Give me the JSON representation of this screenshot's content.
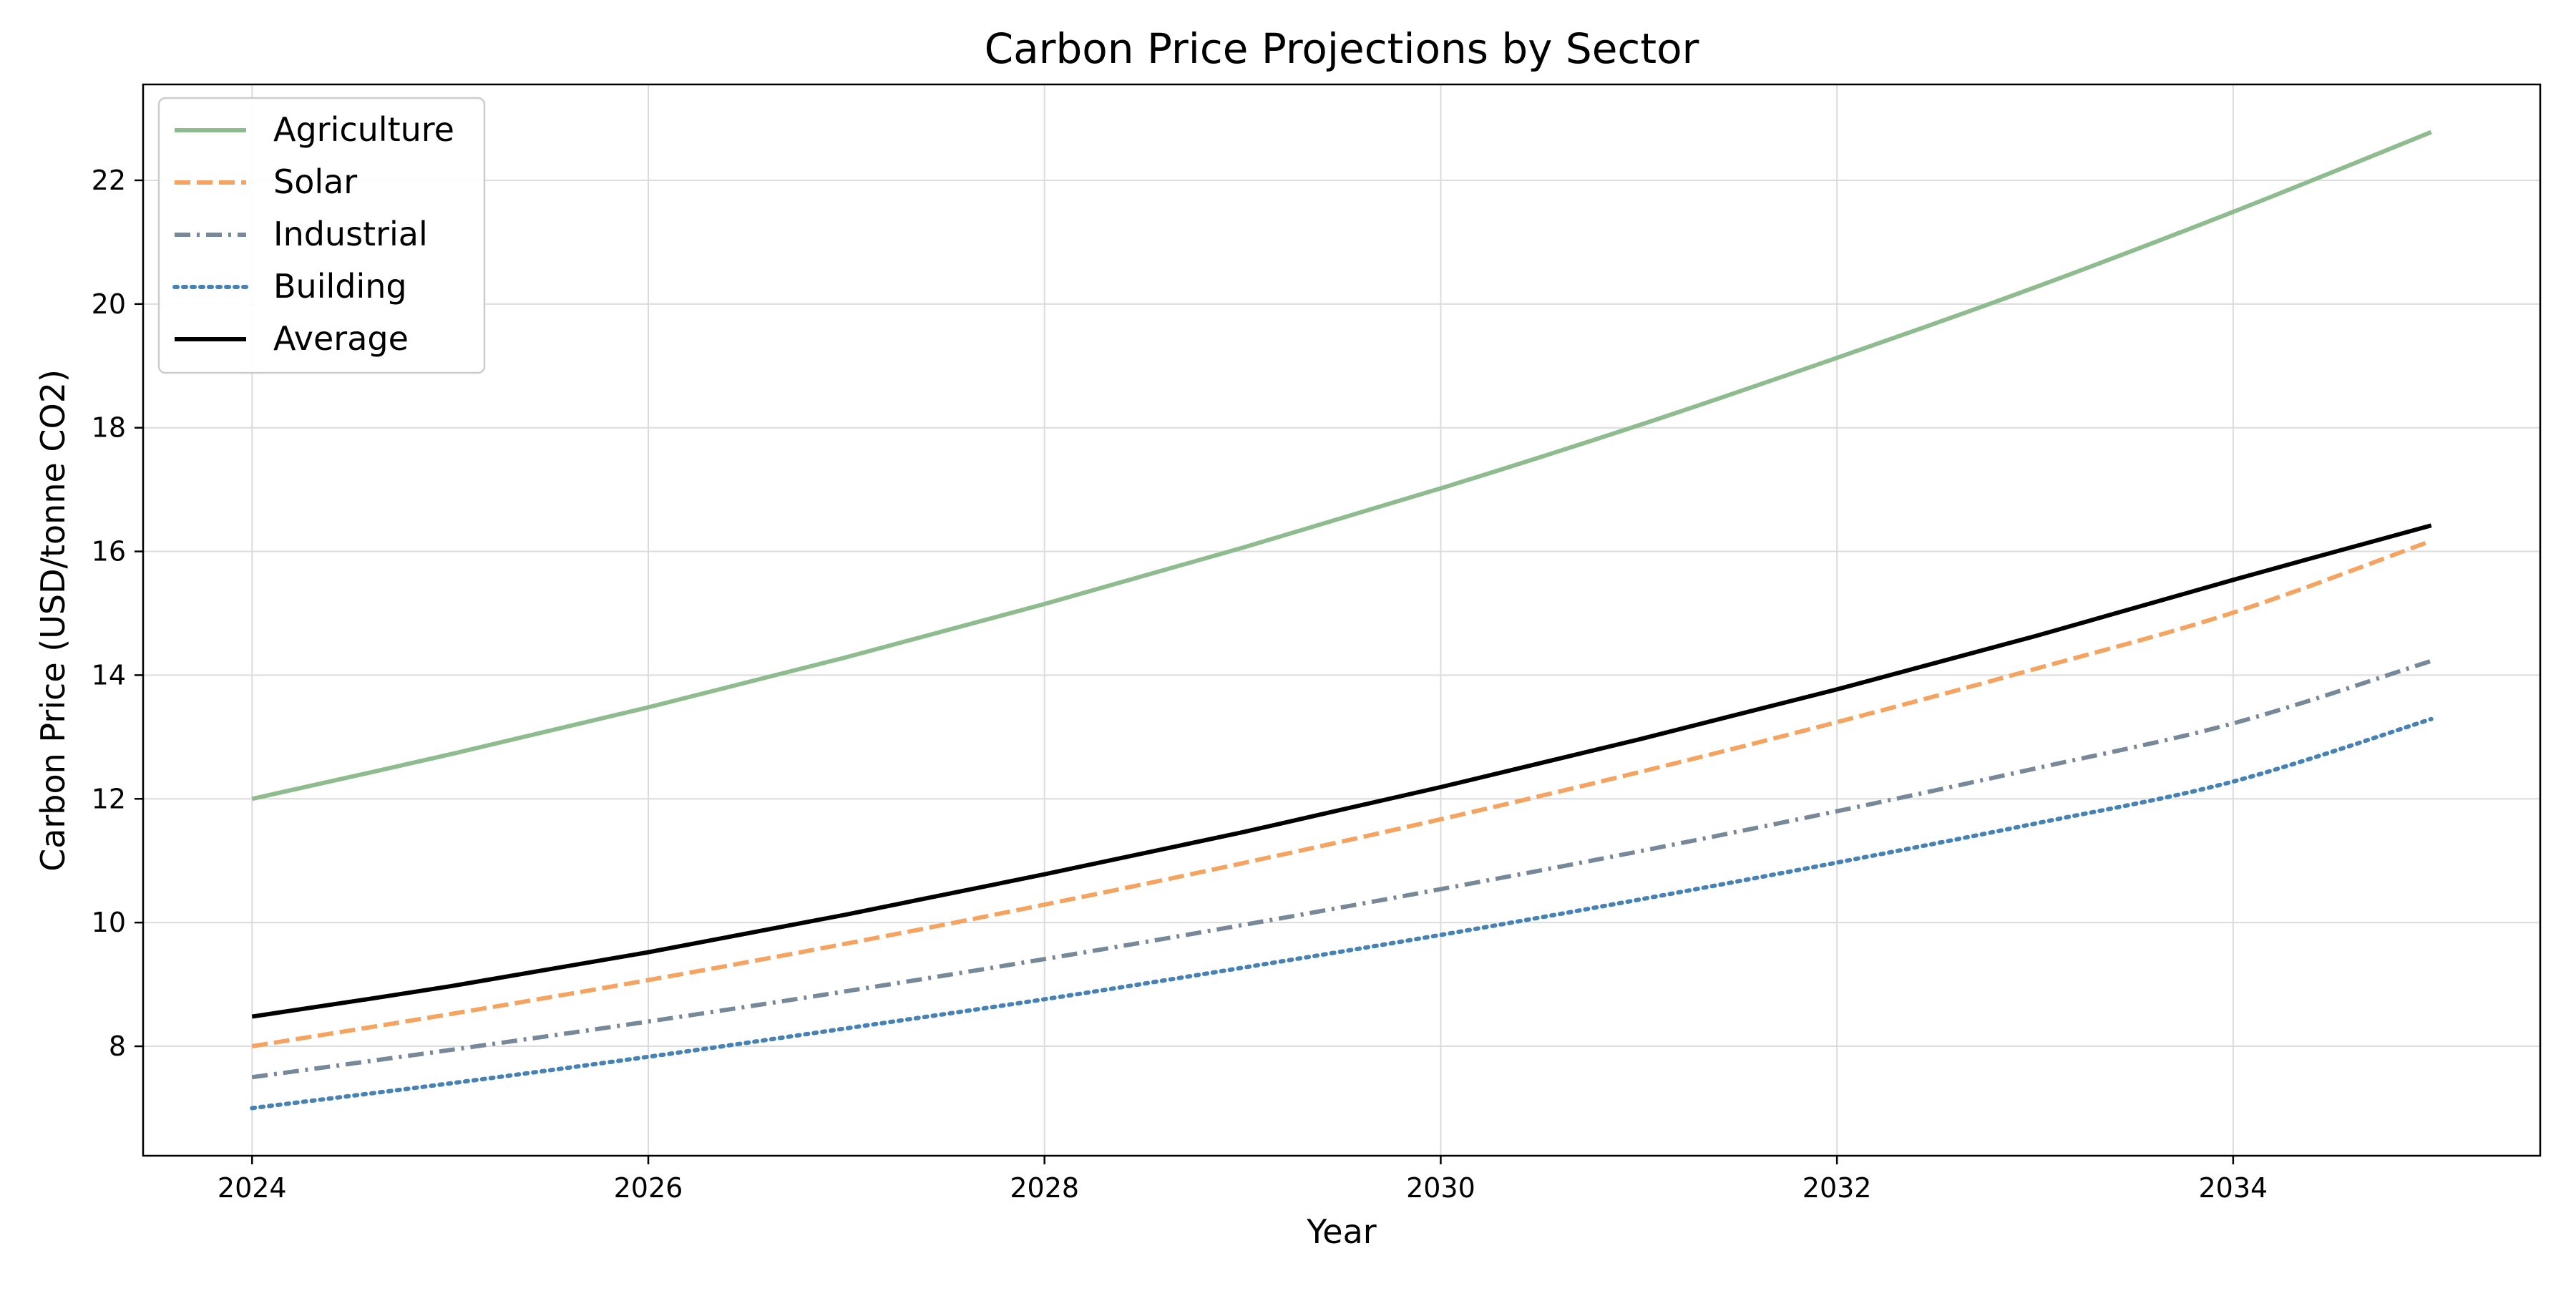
{
  "chart_data": {
    "type": "line",
    "title": "Carbon Price Projections by Sector",
    "xlabel": "Year",
    "ylabel": "Carbon Price (USD/tonne CO2)",
    "xlim": [
      2023.45,
      2035.55
    ],
    "ylim": [
      6.23,
      23.55
    ],
    "x_ticks": [
      2024,
      2026,
      2028,
      2030,
      2032,
      2034
    ],
    "y_ticks": [
      8,
      10,
      12,
      14,
      16,
      18,
      20,
      22
    ],
    "grid": true,
    "legend_position": "top-left",
    "x": [
      2024,
      2025,
      2026,
      2027,
      2028,
      2029,
      2030,
      2031,
      2032,
      2033,
      2034,
      2035
    ],
    "series": [
      {
        "name": "Agriculture",
        "color": "#8fbc8f",
        "style": "solid",
        "values": [
          12.0,
          12.72,
          13.48,
          14.29,
          15.15,
          16.06,
          17.02,
          18.04,
          19.13,
          20.27,
          21.49,
          22.78
        ]
      },
      {
        "name": "Solar",
        "color": "#f4a460",
        "style": "dashed",
        "values": [
          8.0,
          8.52,
          9.07,
          9.66,
          10.29,
          10.96,
          11.67,
          12.43,
          13.24,
          14.1,
          15.01,
          16.17
        ]
      },
      {
        "name": "Industrial",
        "color": "#778899",
        "style": "dashdot",
        "values": [
          7.5,
          7.94,
          8.4,
          8.89,
          9.41,
          9.96,
          10.54,
          11.15,
          11.8,
          12.49,
          13.22,
          14.23
        ]
      },
      {
        "name": "Building",
        "color": "#4682b4",
        "style": "dotted",
        "values": [
          7.0,
          7.4,
          7.83,
          8.29,
          8.76,
          9.27,
          9.8,
          10.37,
          10.97,
          11.6,
          12.28,
          13.29
        ]
      },
      {
        "name": "Average",
        "color": "#000000",
        "style": "solid",
        "values": [
          8.48,
          8.97,
          9.52,
          10.13,
          10.78,
          11.46,
          12.19,
          12.96,
          13.77,
          14.63,
          15.54,
          16.42
        ]
      }
    ]
  }
}
